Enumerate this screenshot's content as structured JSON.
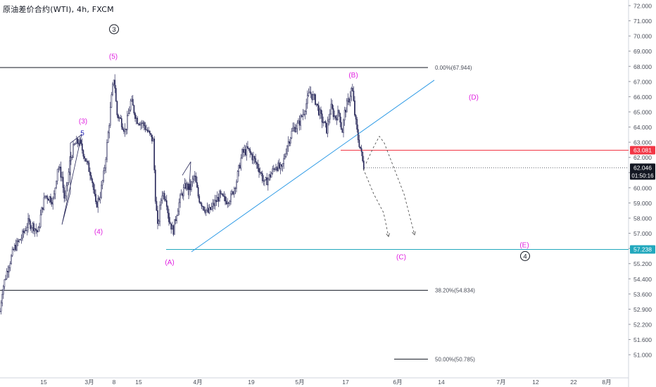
{
  "header": {
    "symbol_title": "原油差价合约(WTI), 4h, FXCM"
  },
  "chart_data": {
    "type": "candlestick",
    "title": "原油差价合约(WTI), 4h, FXCM",
    "ylim": [
      50.8,
      72.4
    ],
    "y_ticks": [
      "72.000",
      "71.000",
      "70.000",
      "69.000",
      "68.000",
      "67.000",
      "66.000",
      "65.000",
      "64.000",
      "63.000",
      "62.000",
      "61.000",
      "60.000",
      "59.000",
      "58.000",
      "57.000",
      "56.000",
      "55.200",
      "54.400",
      "53.600",
      "52.900",
      "52.200",
      "51.600",
      "51.000"
    ],
    "x_ticks": [
      "15",
      "3月",
      "8",
      "15",
      "4月",
      "19",
      "5月",
      "17",
      "6月",
      "14",
      "7月",
      "12",
      "22",
      "8月"
    ],
    "price_path": [
      [
        0,
        53.6
      ],
      [
        3,
        54.8
      ],
      [
        10,
        56.0
      ],
      [
        20,
        57.3
      ],
      [
        30,
        57.9
      ],
      [
        40,
        58.8
      ],
      [
        48,
        58.6
      ],
      [
        54,
        58.2
      ],
      [
        58,
        59.3
      ],
      [
        64,
        60.4
      ],
      [
        70,
        60.3
      ],
      [
        76,
        60.1
      ],
      [
        82,
        62.2
      ],
      [
        88,
        61.5
      ],
      [
        92,
        60.0
      ],
      [
        96,
        61.2
      ],
      [
        100,
        62.6
      ],
      [
        106,
        63.4
      ],
      [
        112,
        63.6
      ],
      [
        118,
        63.0
      ],
      [
        124,
        62.2
      ],
      [
        130,
        61.6
      ],
      [
        136,
        59.8
      ],
      [
        142,
        60.4
      ],
      [
        148,
        61.8
      ],
      [
        154,
        64.2
      ],
      [
        158,
        66.0
      ],
      [
        162,
        67.5
      ],
      [
        166,
        65.2
      ],
      [
        172,
        64.8
      ],
      [
        178,
        64.2
      ],
      [
        186,
        66.0
      ],
      [
        194,
        64.9
      ],
      [
        204,
        64.6
      ],
      [
        212,
        64.0
      ],
      [
        218,
        63.6
      ],
      [
        220,
        60.8
      ],
      [
        224,
        58.5
      ],
      [
        230,
        60.6
      ],
      [
        236,
        60.3
      ],
      [
        240,
        59.0
      ],
      [
        246,
        58.3
      ],
      [
        252,
        59.6
      ],
      [
        258,
        60.5
      ],
      [
        264,
        61.0
      ],
      [
        270,
        60.8
      ],
      [
        276,
        61.6
      ],
      [
        282,
        60.3
      ],
      [
        290,
        59.7
      ],
      [
        296,
        59.4
      ],
      [
        304,
        59.9
      ],
      [
        312,
        60.4
      ],
      [
        320,
        60.1
      ],
      [
        328,
        60.3
      ],
      [
        336,
        61.3
      ],
      [
        344,
        62.9
      ],
      [
        352,
        63.1
      ],
      [
        360,
        62.6
      ],
      [
        368,
        62.0
      ],
      [
        376,
        61.1
      ],
      [
        384,
        61.6
      ],
      [
        392,
        62.2
      ],
      [
        400,
        61.9
      ],
      [
        408,
        63.4
      ],
      [
        416,
        64.3
      ],
      [
        424,
        64.6
      ],
      [
        432,
        65.4
      ],
      [
        440,
        66.5
      ],
      [
        448,
        66.0
      ],
      [
        456,
        65.0
      ],
      [
        464,
        64.3
      ],
      [
        470,
        65.6
      ],
      [
        476,
        65.0
      ],
      [
        482,
        65.3
      ],
      [
        486,
        64.1
      ],
      [
        490,
        65.4
      ],
      [
        496,
        66.1
      ],
      [
        500,
        66.8
      ],
      [
        504,
        65.2
      ],
      [
        508,
        63.9
      ],
      [
        512,
        63.2
      ],
      [
        516,
        62.2
      ],
      [
        518,
        62.05
      ]
    ],
    "series": [],
    "levels": [
      {
        "label": "0.00%(67.944)",
        "value": 67.944
      },
      {
        "label": "38.20%(54.834)",
        "value": 54.834
      },
      {
        "label": "50.00%(50.785)",
        "value": 50.785
      }
    ],
    "horizontal_lines": [
      {
        "value": 63.081,
        "color": "#f23645"
      },
      {
        "value": 57.238,
        "color": "#22a8bd"
      }
    ],
    "trendline": {
      "x": [
        272,
        617
      ],
      "y": [
        57.1,
        67.2
      ],
      "color": "#2e9be6"
    },
    "projection_paths": [
      {
        "points": [
          [
            516,
            62.0
          ],
          [
            531,
            60.5
          ],
          [
            545,
            59.4
          ],
          [
            552,
            58.0
          ]
        ]
      },
      {
        "points": [
          [
            520,
            62.3
          ],
          [
            530,
            63.2
          ],
          [
            539,
            63.9
          ],
          [
            546,
            63.5
          ],
          [
            560,
            62.0
          ],
          [
            574,
            60.5
          ],
          [
            589,
            58.1
          ]
        ]
      }
    ],
    "wave_labels": [
      {
        "text": "3",
        "x": 162,
        "y": 70.2,
        "color": "#131722",
        "circled": true
      },
      {
        "text": "(5)",
        "x": 161,
        "y": 68.6,
        "color": "#e020e0"
      },
      {
        "text": "(3)",
        "x": 118,
        "y": 64.8,
        "color": "#e020e0"
      },
      {
        "text": "5",
        "x": 117,
        "y": 64.1,
        "color": "#1a1ab0"
      },
      {
        "text": "(4)",
        "x": 140,
        "y": 58.3,
        "color": "#e020e0"
      },
      {
        "text": "(A)",
        "x": 241,
        "y": 56.5,
        "color": "#e020e0"
      },
      {
        "text": "(B)",
        "x": 502,
        "y": 67.5,
        "color": "#e020e0"
      },
      {
        "text": "(D)",
        "x": 673,
        "y": 66.2,
        "color": "#e020e0"
      },
      {
        "text": "(C)",
        "x": 570,
        "y": 56.8,
        "color": "#e020e0"
      },
      {
        "text": "(E)",
        "x": 745,
        "y": 57.5,
        "color": "#e020e0"
      },
      {
        "text": "4",
        "x": 746,
        "y": 56.85,
        "color": "#131722",
        "circled": true
      }
    ],
    "last_price": {
      "value": 62.046,
      "label": "62.046",
      "countdown": "01:50:16",
      "color": "#131722"
    },
    "price_tags": [
      {
        "label": "63.081",
        "value": 63.081,
        "color": "#f23645"
      },
      {
        "label": "57.238",
        "value": 57.238,
        "color": "#22a8bd"
      }
    ],
    "colors": {
      "candles": "#2b2b5c",
      "grid_line": "#131722",
      "axis_text": "#4a4e59"
    }
  }
}
